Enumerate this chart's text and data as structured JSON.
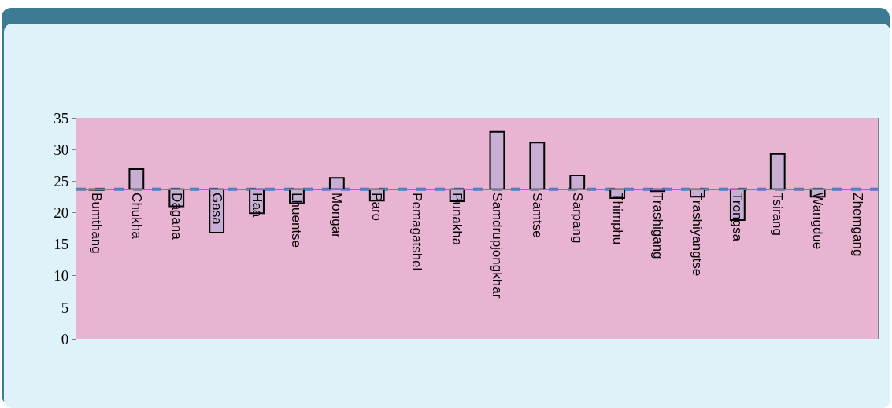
{
  "chart_data": {
    "type": "bar",
    "categories": [
      "Bumthang",
      "Chukha",
      "Dagana",
      "Gasa",
      "Haa",
      "Lhuentse",
      "Mongar",
      "Paro",
      "Pemagatshel",
      "Punakha",
      "Samdrupjongkhar",
      "Samtse",
      "Sarpang",
      "Thimphu",
      "Trashigang",
      "Trashiyangtse",
      "Trongsa",
      "Tsirang",
      "Wangdue",
      "Zhemgang"
    ],
    "base": [
      23.7,
      23.7,
      23.7,
      23.7,
      23.7,
      23.7,
      23.7,
      23.7,
      null,
      23.7,
      23.7,
      23.7,
      23.7,
      23.7,
      23.7,
      23.7,
      23.7,
      23.7,
      23.7,
      null
    ],
    "values": [
      -0.1,
      3.2,
      -2.7,
      -6.9,
      -3.8,
      -2.2,
      1.8,
      -1.8,
      null,
      -1.9,
      9.1,
      7.4,
      2.2,
      -1.4,
      -0.3,
      -1.2,
      -4.9,
      5.6,
      -1.2,
      null
    ],
    "color": "#c9aed4",
    "ylim": [
      0,
      35
    ],
    "yticks": [
      0,
      5,
      10,
      15,
      20,
      25,
      30,
      35
    ],
    "ref_lines": [
      {
        "axis": "y",
        "value": 23.7,
        "color": "#4f7ac0",
        "line_style": "dashed"
      }
    ],
    "grid": false,
    "legend": false
  }
}
